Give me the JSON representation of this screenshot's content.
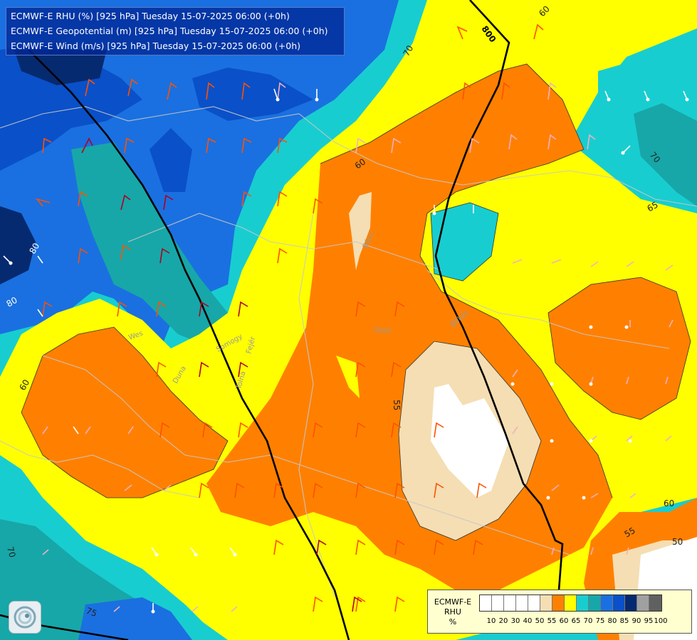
{
  "header": {
    "lines": [
      "ECMWF-E RHU (%) [925 hPa] Tuesday 15-07-2025 06:00 (+0h)",
      "ECMWF-E Geopotential (m) [925 hPa] Tuesday 15-07-2025 06:00 (+0h)",
      "ECMWF-E Wind (m/s) [925 hPa] Tuesday 15-07-2025 06:00 (+0h)"
    ]
  },
  "legend": {
    "title": [
      "ECMWF-E",
      "RHU",
      "%"
    ],
    "ticks": [
      "10",
      "20",
      "30",
      "40",
      "50",
      "55",
      "60",
      "65",
      "70",
      "75",
      "80",
      "85",
      "90",
      "95",
      "100"
    ],
    "colors": [
      "#ffffff",
      "#ffffff",
      "#ffffff",
      "#ffffff",
      "#ffffff",
      "#f5deb3",
      "#ff8000",
      "#ffff00",
      "#18cdd0",
      "#17a7a8",
      "#1a70e0",
      "#0a50c8",
      "#062a70",
      "#a0a0a0",
      "#606060"
    ]
  },
  "contour_labels": {
    "geopotential": [
      "800"
    ],
    "rhu": [
      "60",
      "70",
      "60",
      "70",
      "65",
      "55",
      "60",
      "55",
      "50",
      "80",
      "80",
      "60",
      "70",
      "75"
    ]
  },
  "place_labels": [
    "Pest",
    "Wes",
    "Tolna",
    "Fejér",
    "Duna",
    "Somogy",
    "Békés",
    "Bács"
  ],
  "colors": {
    "rhu_55": "#f5deb3",
    "rhu_60": "#ff8000",
    "rhu_65": "#ffff00",
    "rhu_70": "#18cdd0",
    "rhu_75": "#17a7a8",
    "rhu_80": "#1a70e0",
    "rhu_85": "#0a50c8",
    "rhu_90": "#062a70",
    "white": "#ffffff",
    "border": "#c8c8c8",
    "geopotential": "#000000"
  },
  "logo": {
    "icon": "model-logo-icon"
  }
}
